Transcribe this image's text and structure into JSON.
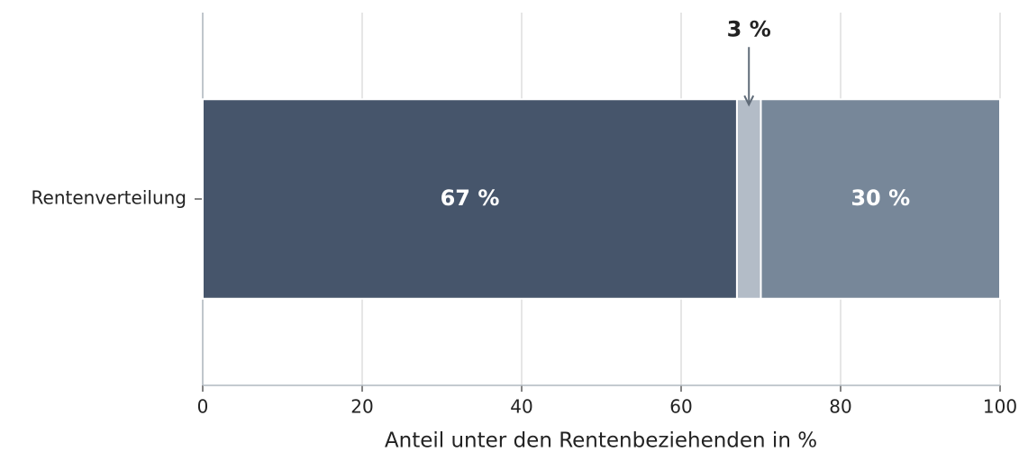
{
  "chart_data": {
    "type": "stacked_barh",
    "categories": [
      "Rentenverteilung"
    ],
    "series": [
      {
        "color": "#46556b",
        "values": [
          67
        ],
        "value_labels": [
          "67 %"
        ]
      },
      {
        "color": "#b3bcc7",
        "values": [
          3
        ],
        "value_labels": [
          "3 %"
        ]
      },
      {
        "color": "#778799",
        "values": [
          30
        ],
        "value_labels": [
          "30 %"
        ]
      }
    ],
    "xlabel": "Anteil unter den Rentenbeziehenden in %",
    "xlim": [
      0,
      100
    ],
    "xticks": [
      0,
      20,
      40,
      60,
      80,
      100
    ],
    "grid": true
  }
}
